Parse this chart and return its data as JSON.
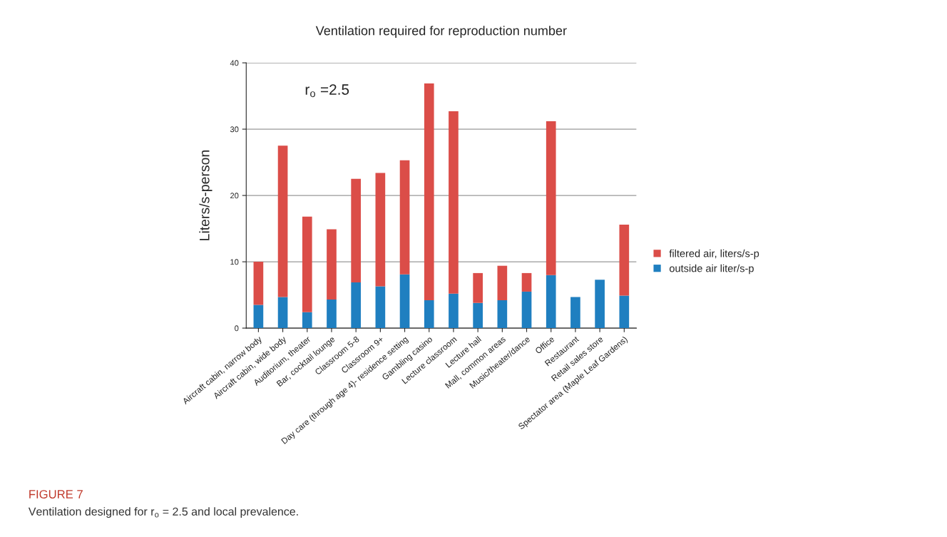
{
  "chart_data": {
    "type": "bar",
    "title": "Ventilation required for reproduction number",
    "ylabel": "Liters/s-person",
    "categories": [
      "Aircraft cabin, narrow body",
      "Aircraft cabin, wide body",
      "Auditorium, theater",
      "Bar, cocktail lounge",
      "Classroom 5-8",
      "Classroom 9+",
      "Day care (through age 4)- residence setting",
      "Gambling casino",
      "Lecture classroom",
      "Lecture hall",
      "Mall, common areas",
      "Music/theater/dance",
      "Office",
      "Restaurant",
      "Retail sales store",
      "Spectator area (Maple Leaf Gardens)"
    ],
    "stacked": true,
    "series": [
      {
        "name": "outside air liter/s-p",
        "color": "#1f7fc0",
        "values": [
          3.5,
          4.7,
          2.4,
          4.3,
          6.9,
          6.3,
          8.1,
          4.2,
          5.2,
          3.8,
          4.2,
          5.5,
          8.0,
          4.7,
          7.3,
          4.9
        ]
      },
      {
        "name": "filtered air, liters/s-p",
        "color": "#db4d48",
        "values": [
          6.5,
          22.8,
          14.4,
          10.6,
          15.6,
          17.1,
          17.2,
          32.7,
          27.5,
          4.5,
          5.2,
          2.8,
          23.2,
          null,
          null,
          10.7
        ]
      }
    ],
    "ylim": [
      0,
      40
    ],
    "yticks": [
      0,
      10,
      20,
      30,
      40
    ],
    "grid": "y",
    "legend": "right",
    "annotations": [
      "r$_{o}$ =2.5",
      "FIGURE 7",
      "Ventilation designed for r$_{o}$ = 2.5 and local prevalence."
    ]
  }
}
